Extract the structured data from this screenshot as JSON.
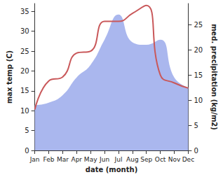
{
  "chart_data": {
    "type": "line",
    "x_label": "date (month)",
    "y_label": "max temp (C)",
    "y2_label": "med. precipitation (kg/m2)",
    "categories": [
      "Jan",
      "Feb",
      "Mar",
      "Apr",
      "May",
      "Jun",
      "Jul",
      "Aug",
      "Sep",
      "Oct",
      "Nov",
      "Dec"
    ],
    "series": [
      {
        "name": "med. precipitation (kg/m2)",
        "type": "area",
        "axis": "y2",
        "color": "#aab7ee",
        "values": [
          9,
          9.5,
          11,
          14.5,
          17,
          22,
          27,
          21.5,
          21,
          22,
          14.5,
          12.5
        ]
      },
      {
        "name": "max temp (C)",
        "type": "line",
        "color": "#c9585a",
        "values": [
          10.3,
          17.5,
          18.5,
          24.5,
          25,
          32.5,
          32.5,
          34.5,
          36.5,
          19,
          17,
          15.7
        ]
      }
    ],
    "ylim": [
      0,
      37
    ],
    "yticks": [
      0,
      5,
      10,
      15,
      20,
      25,
      30,
      35
    ],
    "y2lim": [
      0,
      29.2
    ],
    "y2ticks": [
      0,
      5,
      10,
      15,
      20,
      25
    ],
    "grid": false
  }
}
